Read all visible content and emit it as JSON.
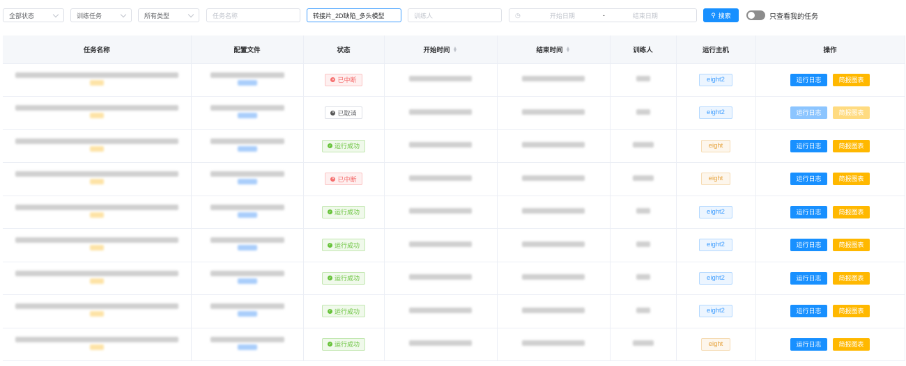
{
  "filters": {
    "status": "全部状态",
    "task_kind": "训练任务",
    "type": "所有类型",
    "task_name_placeholder": "任务名称",
    "model": "转接片_2D缺陷_多头模型",
    "trainer_placeholder": "训练人",
    "start_date_placeholder": "开始日期",
    "date_sep": "-",
    "end_date_placeholder": "结束日期",
    "search_label": "搜索",
    "only_mine_label": "只查看我的任务",
    "only_mine": false
  },
  "columns": [
    "任务名称",
    "配置文件",
    "状态",
    "开始时间",
    "结束时间",
    "训练人",
    "运行主机",
    "操作"
  ],
  "actions": {
    "log": "运行日志",
    "report": "简报图表"
  },
  "rows": [
    {
      "status": "已中断",
      "kind": "int",
      "host": "eight2",
      "disabled": false
    },
    {
      "status": "已取消",
      "kind": "can",
      "host": "eight2",
      "disabled": true
    },
    {
      "status": "运行成功",
      "kind": "ok",
      "host": "eight",
      "disabled": false
    },
    {
      "status": "已中断",
      "kind": "int",
      "host": "eight",
      "disabled": false
    },
    {
      "status": "运行成功",
      "kind": "ok",
      "host": "eight2",
      "disabled": false
    },
    {
      "status": "运行成功",
      "kind": "ok",
      "host": "eight2",
      "disabled": false
    },
    {
      "status": "运行成功",
      "kind": "ok",
      "host": "eight2",
      "disabled": false
    },
    {
      "status": "运行成功",
      "kind": "ok",
      "host": "eight2",
      "disabled": false
    },
    {
      "status": "运行成功",
      "kind": "ok",
      "host": "eight",
      "disabled": false
    }
  ]
}
